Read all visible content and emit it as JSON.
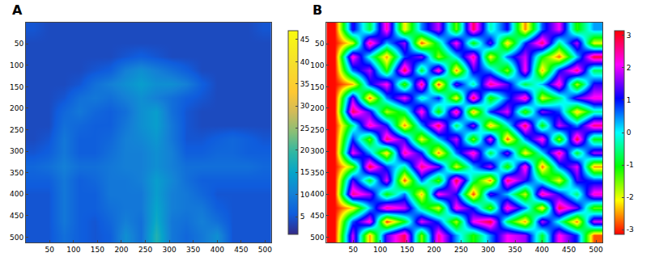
{
  "chart_data": [
    {
      "type": "heatmap",
      "label": "A",
      "color": "parula",
      "x": [
        16,
        48,
        80,
        112,
        144,
        176,
        208,
        240,
        272,
        304,
        336,
        368,
        400,
        432,
        464,
        496
      ],
      "y": [
        16,
        48,
        80,
        112,
        144,
        176,
        208,
        240,
        272,
        304,
        336,
        368,
        400,
        432,
        464,
        496
      ],
      "xlim": [
        0.5,
        512.5
      ],
      "ylim": [
        512.5,
        0.5
      ],
      "xticks": [
        50,
        100,
        150,
        200,
        250,
        300,
        350,
        400,
        450,
        500
      ],
      "yticks": [
        50,
        100,
        150,
        200,
        250,
        300,
        350,
        400,
        450,
        500
      ],
      "colorbar_range": [
        1,
        47
      ],
      "colorbar_ticks": [
        5,
        10,
        15,
        20,
        25,
        30,
        35,
        40,
        45
      ],
      "z": [
        [
          5,
          4,
          4,
          4,
          4,
          4,
          4,
          4,
          4,
          4,
          4,
          4,
          4,
          4,
          4,
          5
        ],
        [
          4,
          4,
          4,
          4,
          4,
          4,
          4,
          4,
          4,
          4,
          4,
          4,
          4,
          4,
          4,
          4
        ],
        [
          4,
          4,
          4,
          4,
          4,
          4,
          5,
          6,
          5,
          4,
          4,
          4,
          4,
          4,
          4,
          4
        ],
        [
          4,
          4,
          4,
          4,
          5,
          6,
          10,
          12,
          10,
          8,
          6,
          4,
          4,
          4,
          4,
          4
        ],
        [
          4,
          4,
          4,
          5,
          8,
          10,
          12,
          14,
          12,
          12,
          10,
          6,
          4,
          4,
          4,
          4
        ],
        [
          4,
          4,
          5,
          8,
          9,
          8,
          10,
          12,
          10,
          8,
          6,
          5,
          4,
          4,
          4,
          4
        ],
        [
          4,
          4,
          7,
          9,
          7,
          6,
          8,
          12,
          14,
          8,
          5,
          4,
          4,
          4,
          4,
          4
        ],
        [
          4,
          4,
          8,
          7,
          6,
          6,
          9,
          12,
          14,
          9,
          5,
          4,
          4,
          4,
          4,
          4
        ],
        [
          4,
          5,
          9,
          6,
          6,
          7,
          10,
          11,
          13,
          9,
          5,
          5,
          6,
          7,
          6,
          5
        ],
        [
          5,
          6,
          9,
          6,
          6,
          8,
          10,
          10,
          12,
          10,
          6,
          6,
          7,
          7,
          6,
          6
        ],
        [
          7,
          8,
          10,
          8,
          8,
          9,
          10,
          10,
          12,
          10,
          8,
          8,
          8,
          8,
          8,
          7
        ],
        [
          6,
          6,
          9,
          6,
          7,
          9,
          9,
          10,
          14,
          11,
          8,
          6,
          6,
          6,
          6,
          6
        ],
        [
          5,
          5,
          9,
          6,
          6,
          9,
          9,
          9,
          14,
          10,
          9,
          7,
          5,
          5,
          5,
          5
        ],
        [
          5,
          5,
          9,
          6,
          6,
          8,
          9,
          9,
          15,
          10,
          9,
          9,
          6,
          5,
          5,
          5
        ],
        [
          5,
          5,
          9,
          6,
          5,
          7,
          10,
          8,
          16,
          9,
          8,
          10,
          8,
          5,
          5,
          5
        ],
        [
          5,
          5,
          8,
          6,
          5,
          6,
          12,
          8,
          18,
          9,
          7,
          9,
          12,
          5,
          5,
          5
        ]
      ]
    },
    {
      "type": "heatmap",
      "label": "B",
      "color": "hsv",
      "x": [
        16,
        48,
        80,
        112,
        144,
        176,
        208,
        240,
        272,
        304,
        336,
        368,
        400,
        432,
        464,
        496
      ],
      "y": [
        16,
        48,
        80,
        112,
        144,
        176,
        208,
        240,
        272,
        304,
        336,
        368,
        400,
        432,
        464,
        496
      ],
      "xlim": [
        0.5,
        512.5
      ],
      "ylim": [
        512.5,
        0.5
      ],
      "xticks": [
        50,
        100,
        150,
        200,
        250,
        300,
        350,
        400,
        450,
        500
      ],
      "yticks": [
        50,
        100,
        150,
        200,
        250,
        300,
        350,
        400,
        450,
        500
      ],
      "colorbar_range": [
        -3.1416,
        3.1416
      ],
      "colorbar_ticks": [
        -3,
        -2,
        -1,
        0,
        1,
        2,
        3
      ],
      "z": [
        [
          -3.1,
          1.2,
          -0.8,
          2.4,
          -2.2,
          0.5,
          1.9,
          -1.5,
          2.8,
          -0.3,
          1.1,
          -2.6,
          0.7,
          2.1,
          -1.2,
          0.4
        ],
        [
          -3.1,
          -1.9,
          2.6,
          0.3,
          1.7,
          -2.8,
          -0.6,
          2.2,
          -1.1,
          1.5,
          -2.3,
          0.9,
          2.7,
          -0.5,
          1.8,
          -2.0
        ],
        [
          -3.1,
          2.3,
          -0.2,
          -2.5,
          0.8,
          1.6,
          -1.7,
          0.1,
          2.5,
          -2.1,
          0.6,
          1.9,
          -1.0,
          -2.7,
          0.2,
          2.9
        ],
        [
          -3.1,
          0.6,
          1.8,
          -1.2,
          2.9,
          -0.9,
          2.4,
          -2.6,
          1.3,
          0.4,
          -1.6,
          2.2,
          -2.4,
          1.0,
          2.6,
          -0.7
        ],
        [
          -3.1,
          -2.4,
          0.9,
          2.2,
          -1.4,
          2.7,
          -2.9,
          1.5,
          -0.4,
          2.6,
          1.4,
          -0.8,
          0.3,
          2.4,
          -1.8,
          1.2
        ],
        [
          -3.1,
          1.6,
          -2.7,
          0.5,
          2.1,
          -0.3,
          1.0,
          -2.2,
          2.9,
          -1.3,
          0.7,
          2.5,
          -2.0,
          -0.6,
          1.4,
          2.2
        ],
        [
          -3.1,
          2.8,
          1.3,
          -1.8,
          -0.6,
          2.3,
          -1.2,
          2.6,
          -2.5,
          0.9,
          2.0,
          -1.4,
          1.6,
          0.8,
          -2.3,
          -0.4
        ],
        [
          -3.1,
          -0.5,
          2.4,
          1.1,
          -2.6,
          0.4,
          2.8,
          -0.7,
          1.7,
          -2.4,
          -0.2,
          2.8,
          -1.1,
          1.9,
          0.5,
          2.6
        ],
        [
          -3.1,
          0.9,
          -1.5,
          2.7,
          1.2,
          -2.1,
          0.2,
          1.9,
          -1.6,
          2.2,
          -2.8,
          0.5,
          2.3,
          -1.7,
          2.9,
          -1.0
        ],
        [
          -3.1,
          2.1,
          0.4,
          -2.3,
          2.5,
          1.0,
          -2.6,
          0.6,
          2.4,
          -0.8,
          1.6,
          -2.2,
          0.1,
          2.6,
          -0.9,
          1.7
        ],
        [
          -3.1,
          -1.6,
          2.9,
          0.8,
          -0.4,
          2.6,
          1.5,
          -2.0,
          0.3,
          1.8,
          -1.3,
          2.4,
          -2.7,
          0.6,
          2.0,
          -2.5
        ],
        [
          -3.1,
          1.4,
          -0.9,
          2.0,
          -2.8,
          0.7,
          -1.4,
          2.9,
          -0.6,
          -2.6,
          2.7,
          1.2,
          -0.3,
          -2.1,
          1.3,
          0.8
        ],
        [
          -3.1,
          2.6,
          1.7,
          -1.1,
          0.6,
          -2.4,
          2.2,
          1.1,
          -2.9,
          1.4,
          0.2,
          -1.9,
          2.5,
          1.1,
          -0.6,
          2.3
        ],
        [
          -3.1,
          -2.2,
          0.2,
          2.5,
          1.9,
          -0.5,
          -2.0,
          2.3,
          0.9,
          -1.5,
          2.4,
          0.6,
          -2.3,
          2.8,
          1.5,
          -1.4
        ],
        [
          -3.1,
          0.7,
          2.3,
          -2.9,
          -1.0,
          2.0,
          0.8,
          -1.8,
          2.1,
          2.9,
          -0.7,
          -2.5,
          1.8,
          -0.2,
          -2.6,
          1.9
        ],
        [
          -3.1,
          1.9,
          -2.5,
          1.4,
          2.8,
          -1.6,
          2.5,
          0.4,
          -1.2,
          0.5,
          2.1,
          1.7,
          -0.9,
          2.2,
          0.9,
          -2.8
        ]
      ]
    }
  ]
}
